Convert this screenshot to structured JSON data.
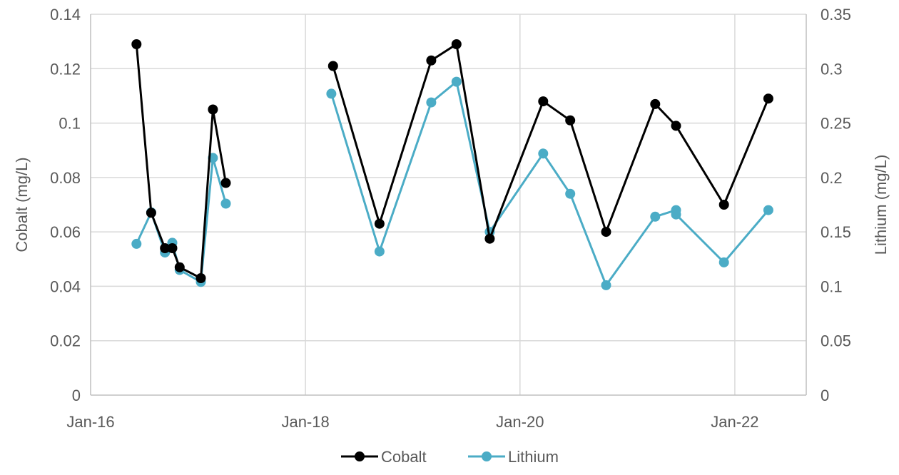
{
  "chart_data": {
    "type": "line",
    "title": "",
    "xlabel": "",
    "ylabel": "Cobalt (mg/L)",
    "y2label": "Lithium (mg/L)",
    "x_ticks": [
      "2016-01-01",
      "2018-01-01",
      "2020-01-01",
      "2022-01-01"
    ],
    "x_tick_labels": [
      "Jan-16",
      "Jan-18",
      "Jan-20",
      "Jan-22"
    ],
    "xlim": [
      "2016-01-01",
      "2022-09-01"
    ],
    "ylim": [
      0,
      0.14
    ],
    "y_ticks": [
      0,
      0.02,
      0.04,
      0.06,
      0.08,
      0.1,
      0.12,
      0.14
    ],
    "y_tick_labels": [
      "0",
      "0.02",
      "0.04",
      "0.06",
      "0.08",
      "0.1",
      "0.12",
      "0.14"
    ],
    "y2lim": [
      0,
      0.35
    ],
    "y2_ticks": [
      0,
      0.05,
      0.1,
      0.15,
      0.2,
      0.25,
      0.3,
      0.35
    ],
    "y2_tick_labels": [
      "0",
      "0.05",
      "0.1",
      "0.15",
      "0.2",
      "0.25",
      "0.3",
      "0.35"
    ],
    "grid": true,
    "legend_position": "bottom",
    "series": [
      {
        "name": "Cobalt",
        "axis": "left",
        "color": "#000000",
        "segments": [
          [
            [
              "2016-06-05",
              0.129
            ],
            [
              "2016-07-25",
              0.067
            ],
            [
              "2016-09-10",
              0.054
            ],
            [
              "2016-10-05",
              0.054
            ],
            [
              "2016-10-30",
              0.047
            ],
            [
              "2017-01-10",
              0.043
            ],
            [
              "2017-02-20",
              0.105
            ],
            [
              "2017-04-05",
              0.078
            ]
          ],
          [
            [
              "2018-04-05",
              0.121
            ],
            [
              "2018-09-10",
              0.063
            ],
            [
              "2019-03-05",
              0.123
            ],
            [
              "2019-05-30",
              0.129
            ],
            [
              "2019-09-20",
              0.0575
            ],
            [
              "2020-03-20",
              0.108
            ],
            [
              "2020-06-20",
              0.101
            ],
            [
              "2020-10-20",
              0.06
            ],
            [
              "2021-04-05",
              0.107
            ],
            [
              "2021-06-15",
              0.099
            ],
            [
              "2021-11-25",
              0.07
            ],
            [
              "2022-04-25",
              0.109
            ]
          ]
        ]
      },
      {
        "name": "Lithium",
        "axis": "right",
        "color": "#4bacc6",
        "segments": [
          [
            [
              "2016-06-05",
              0.139
            ],
            [
              "2016-07-25",
              0.168
            ],
            [
              "2016-09-10",
              0.131
            ],
            [
              "2016-10-05",
              0.14
            ],
            [
              "2016-10-30",
              0.115
            ],
            [
              "2017-01-10",
              0.104
            ],
            [
              "2017-02-20",
              0.218
            ],
            [
              "2017-04-05",
              0.176
            ]
          ],
          [
            [
              "2018-03-30",
              0.277
            ],
            [
              "2018-09-10",
              0.132
            ],
            [
              "2019-03-05",
              0.269
            ],
            [
              "2019-05-30",
              0.288
            ],
            [
              "2019-09-20",
              0.15
            ],
            [
              "2020-03-20",
              0.222
            ],
            [
              "2020-06-20",
              0.185
            ],
            [
              "2020-10-20",
              0.101
            ],
            [
              "2021-04-05",
              0.164
            ],
            [
              "2021-06-15",
              0.17
            ],
            [
              "2021-06-15",
              0.166
            ],
            [
              "2021-11-25",
              0.122
            ],
            [
              "2022-04-25",
              0.17
            ]
          ]
        ]
      }
    ]
  }
}
